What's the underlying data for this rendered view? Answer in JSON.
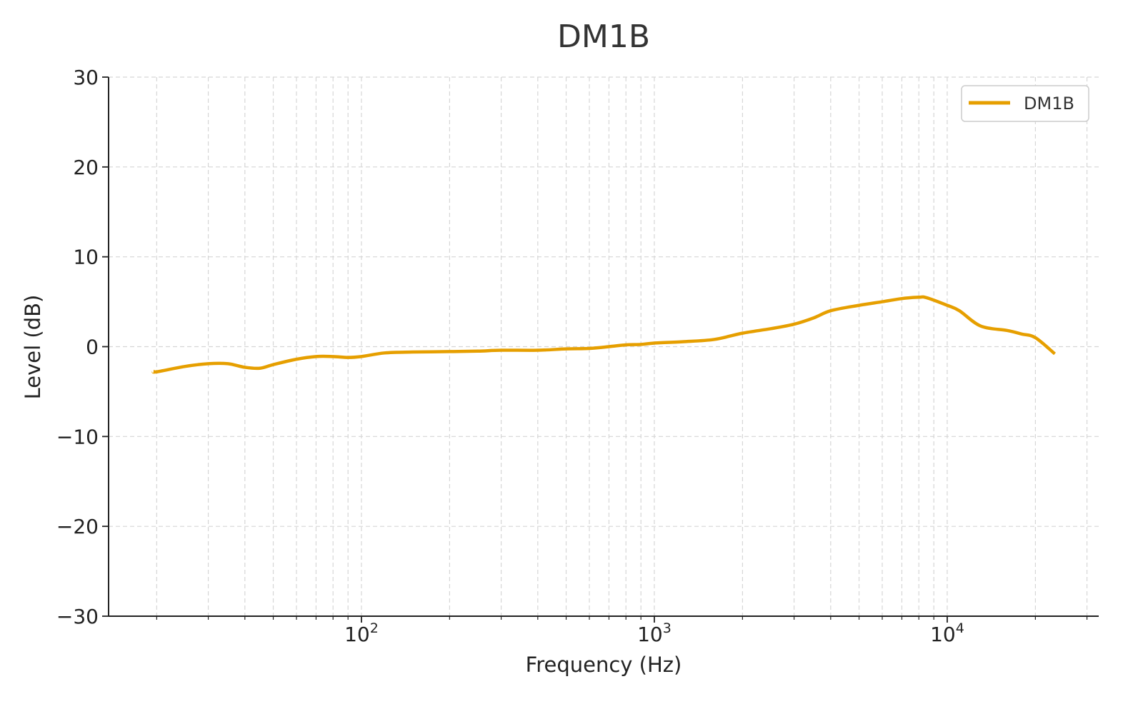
{
  "chart_data": {
    "type": "line",
    "title": "DM1B",
    "xlabel": "Frequency (Hz)",
    "ylabel": "Level (dB)",
    "xscale": "log",
    "xlim": [
      13.7,
      32900
    ],
    "ylim": [
      -30,
      30
    ],
    "yticks": [
      30,
      20,
      10,
      0,
      -10,
      -20,
      -30
    ],
    "ytick_labels": [
      "30",
      "20",
      "10",
      "0",
      "−10",
      "−20",
      "−30"
    ],
    "xticks": [
      100,
      1000,
      10000
    ],
    "xtick_bases": [
      "10",
      "10",
      "10"
    ],
    "xtick_exponents": [
      "2",
      "3",
      "4"
    ],
    "grid": true,
    "legend": {
      "position": "top-right",
      "entries": [
        "DM1B"
      ]
    },
    "series": [
      {
        "name": "DM1B",
        "color": "#E69F00",
        "x": [
          19.5,
          20,
          25,
          30,
          35,
          40,
          45,
          50,
          60,
          70,
          80,
          90,
          100,
          120,
          150,
          200,
          250,
          300,
          400,
          500,
          600,
          700,
          800,
          900,
          1000,
          1250,
          1600,
          2000,
          2500,
          3000,
          3500,
          4000,
          5000,
          6000,
          7000,
          8000,
          8500,
          10000,
          11000,
          13000,
          16000,
          18000,
          20000,
          23300
        ],
        "y": [
          -2.75,
          -2.8,
          -2.2,
          -1.9,
          -1.9,
          -2.3,
          -2.4,
          -2.0,
          -1.4,
          -1.1,
          -1.1,
          -1.2,
          -1.1,
          -0.7,
          -0.6,
          -0.55,
          -0.5,
          -0.4,
          -0.4,
          -0.25,
          -0.2,
          0.0,
          0.2,
          0.25,
          0.4,
          0.55,
          0.8,
          1.5,
          2.0,
          2.5,
          3.2,
          4.0,
          4.6,
          5.0,
          5.35,
          5.5,
          5.45,
          4.6,
          4.0,
          2.3,
          1.8,
          1.4,
          1.0,
          -0.8
        ]
      }
    ]
  }
}
